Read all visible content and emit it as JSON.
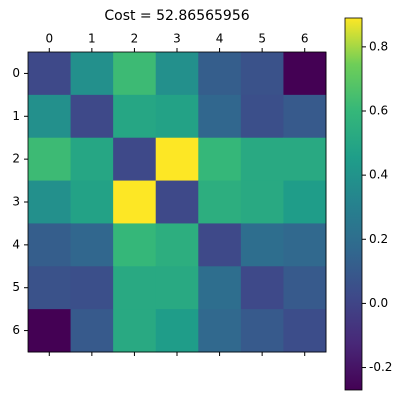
{
  "chart_data": {
    "type": "heatmap",
    "title": "Cost = 52.86565956",
    "colormap": "viridis",
    "xticks": [
      0,
      1,
      2,
      3,
      4,
      5,
      6
    ],
    "yticks": [
      0,
      1,
      2,
      3,
      4,
      5,
      6
    ],
    "values": [
      [
        0.02,
        0.38,
        0.62,
        0.38,
        0.12,
        0.06,
        -0.27
      ],
      [
        0.38,
        0.02,
        0.5,
        0.48,
        0.16,
        0.05,
        0.1
      ],
      [
        0.62,
        0.5,
        0.02,
        0.89,
        0.6,
        0.52,
        0.52
      ],
      [
        0.38,
        0.48,
        0.89,
        0.02,
        0.55,
        0.52,
        0.45
      ],
      [
        0.12,
        0.16,
        0.6,
        0.55,
        0.02,
        0.2,
        0.17
      ],
      [
        0.06,
        0.05,
        0.52,
        0.52,
        0.2,
        0.02,
        0.1
      ],
      [
        -0.27,
        0.1,
        0.52,
        0.45,
        0.17,
        0.1,
        0.04
      ]
    ],
    "clim": [
      -0.27,
      0.89
    ],
    "cticks": [
      -0.2,
      0.0,
      0.2,
      0.4,
      0.6,
      0.8
    ]
  }
}
